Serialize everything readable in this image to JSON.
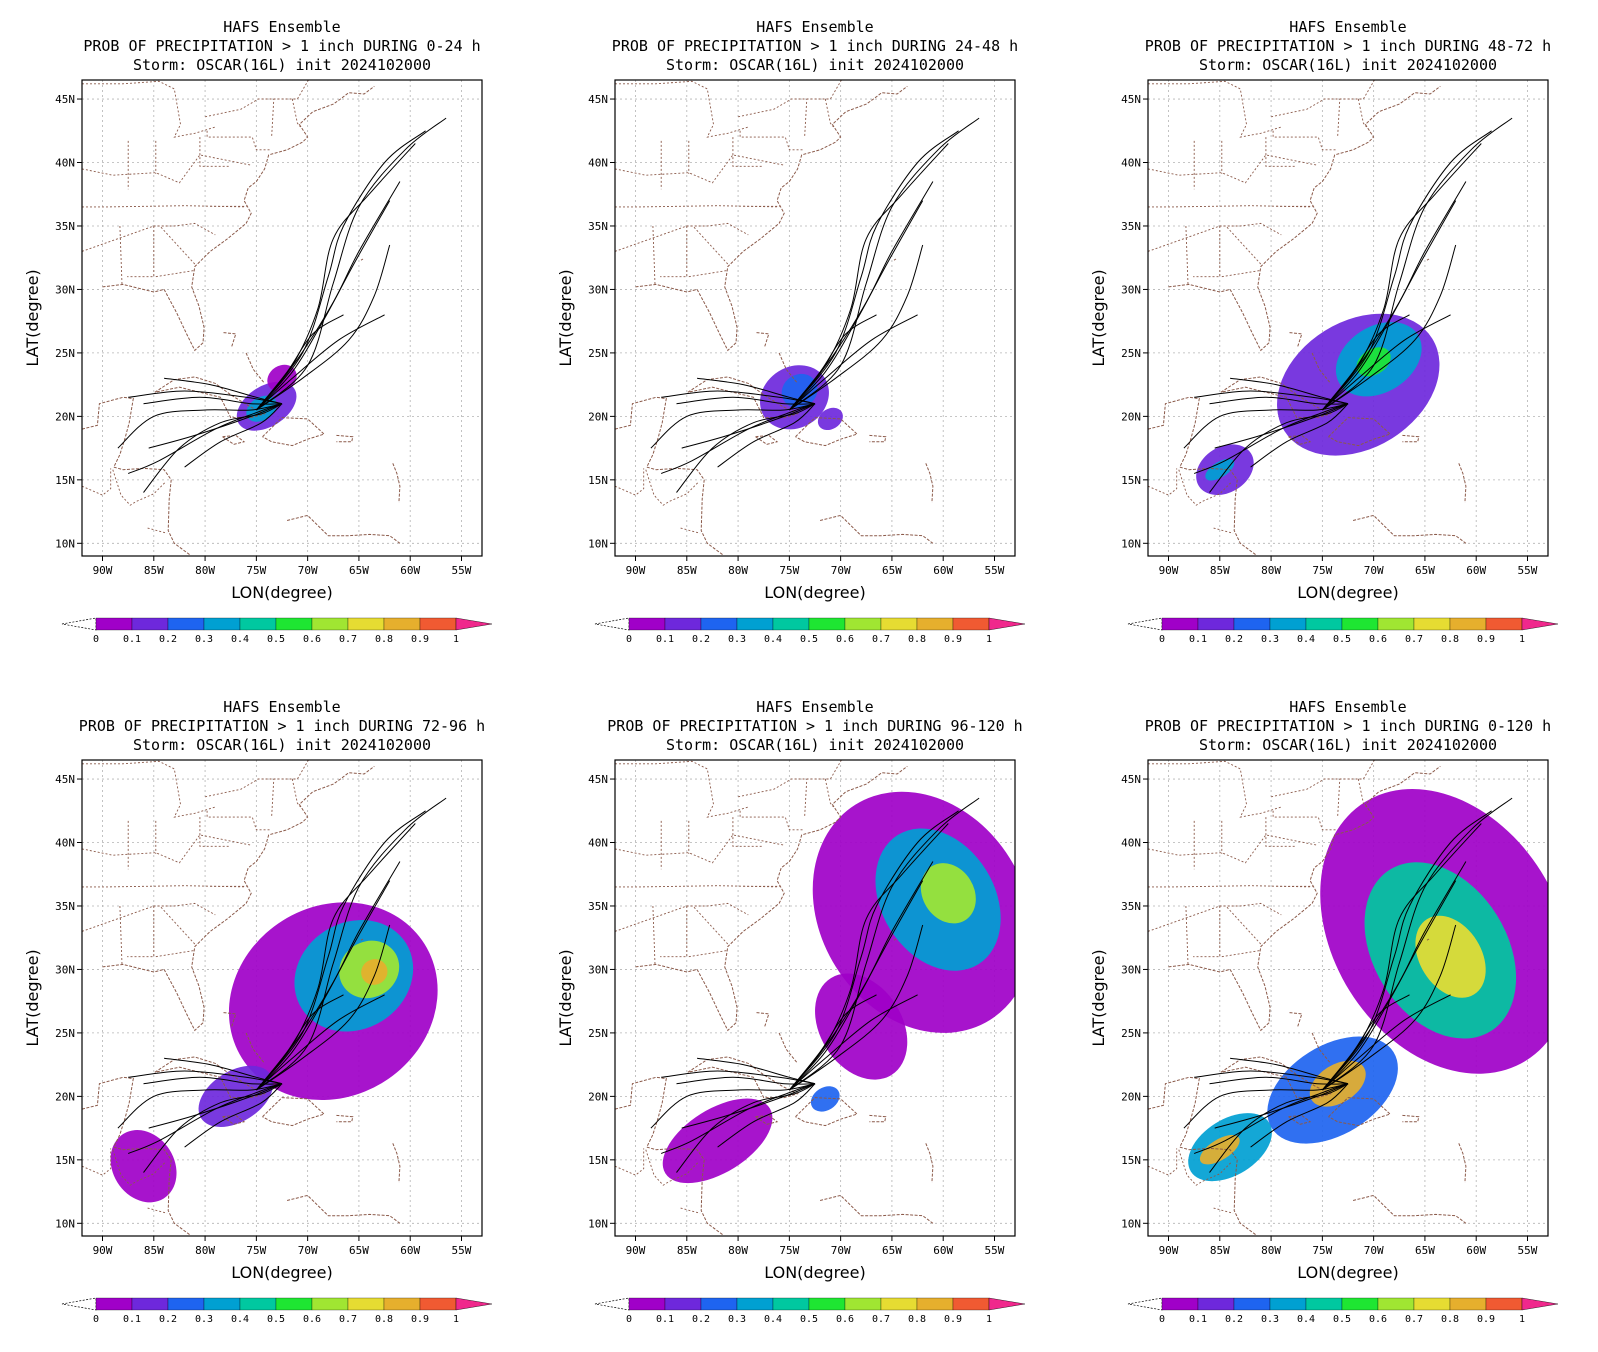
{
  "panels": [
    {
      "title_line1": "HAFS Ensemble",
      "title_line2": "PROB OF PRECIPITATION > 1 inch DURING  0-24 h",
      "title_line3": "Storm: OSCAR(16L) init 2024102000",
      "xlabel": "LON(degree)",
      "ylabel": "LAT(degree)",
      "precip_areas": [
        {
          "lon": -74.0,
          "lat": 20.8,
          "rlon": 3.2,
          "rlat": 1.6,
          "prob": 0.12
        },
        {
          "lon": -74.5,
          "lat": 20.6,
          "rlon": 1.6,
          "rlat": 0.9,
          "prob": 0.3
        },
        {
          "lon": -72.5,
          "lat": 23.0,
          "rlon": 1.5,
          "rlat": 1.0,
          "prob": 0.05
        }
      ]
    },
    {
      "title_line1": "HAFS Ensemble",
      "title_line2": "PROB OF PRECIPITATION > 1 inch DURING 24-48 h",
      "title_line3": "Storm: OSCAR(16L) init 2024102000",
      "xlabel": "LON(degree)",
      "ylabel": "LAT(degree)",
      "precip_areas": [
        {
          "lon": -74.5,
          "lat": 21.5,
          "rlon": 3.5,
          "rlat": 2.4,
          "prob": 0.1
        },
        {
          "lon": -74.0,
          "lat": 22.0,
          "rlon": 1.8,
          "rlat": 1.3,
          "prob": 0.28
        },
        {
          "lon": -71.0,
          "lat": 19.8,
          "rlon": 1.3,
          "rlat": 0.8,
          "prob": 0.15
        }
      ]
    },
    {
      "title_line1": "HAFS Ensemble",
      "title_line2": "PROB OF PRECIPITATION > 1 inch DURING 48-72 h",
      "title_line3": "Storm: OSCAR(16L) init 2024102000",
      "xlabel": "LON(degree)",
      "ylabel": "LAT(degree)",
      "precip_areas": [
        {
          "lon": -71.5,
          "lat": 22.5,
          "rlon": 8.5,
          "rlat": 5.0,
          "prob": 0.1
        },
        {
          "lon": -69.5,
          "lat": 24.5,
          "rlon": 4.5,
          "rlat": 2.6,
          "prob": 0.35
        },
        {
          "lon": -70.0,
          "lat": 24.3,
          "rlon": 1.8,
          "rlat": 1.0,
          "prob": 0.55
        },
        {
          "lon": -84.5,
          "lat": 15.8,
          "rlon": 3.0,
          "rlat": 1.8,
          "prob": 0.12
        },
        {
          "lon": -85.0,
          "lat": 15.8,
          "rlon": 1.6,
          "rlat": 0.6,
          "prob": 0.35
        }
      ]
    },
    {
      "title_line1": "HAFS Ensemble",
      "title_line2": "PROB OF PRECIPITATION > 1 inch DURING 72-96 h",
      "title_line3": "Storm: OSCAR(16L) init 2024102000",
      "xlabel": "LON(degree)",
      "ylabel": "LAT(degree)",
      "precip_areas": [
        {
          "lon": -67.5,
          "lat": 27.5,
          "rlon": 10.5,
          "rlat": 7.5,
          "prob": 0.08
        },
        {
          "lon": -65.5,
          "lat": 29.5,
          "rlon": 6.0,
          "rlat": 4.2,
          "prob": 0.35
        },
        {
          "lon": -64.0,
          "lat": 30.0,
          "rlon": 3.0,
          "rlat": 2.2,
          "prob": 0.6
        },
        {
          "lon": -63.5,
          "lat": 29.8,
          "rlon": 1.3,
          "rlat": 1.0,
          "prob": 0.8
        },
        {
          "lon": -86.0,
          "lat": 14.5,
          "rlon": 3.0,
          "rlat": 3.0,
          "prob": 0.08
        },
        {
          "lon": -77.0,
          "lat": 20.0,
          "rlon": 4.0,
          "rlat": 2.0,
          "prob": 0.1
        }
      ]
    },
    {
      "title_line1": "HAFS Ensemble",
      "title_line2": "PROB OF PRECIPITATION > 1 inch DURING 96-120 h",
      "title_line3": "Storm: OSCAR(16L) init 2024102000",
      "xlabel": "LON(degree)",
      "ylabel": "LAT(degree)",
      "precip_areas": [
        {
          "lon": -62.0,
          "lat": 34.5,
          "rlon": 10.0,
          "rlat": 10.0,
          "prob": 0.08
        },
        {
          "lon": -60.5,
          "lat": 35.5,
          "rlon": 5.5,
          "rlat": 6.0,
          "prob": 0.35
        },
        {
          "lon": -59.5,
          "lat": 36.0,
          "rlon": 2.5,
          "rlat": 2.5,
          "prob": 0.6
        },
        {
          "lon": -68.0,
          "lat": 25.5,
          "rlon": 4.0,
          "rlat": 4.5,
          "prob": 0.08
        },
        {
          "lon": -82.0,
          "lat": 16.5,
          "rlon": 6.0,
          "rlat": 2.5,
          "prob": 0.08
        },
        {
          "lon": -71.5,
          "lat": 19.8,
          "rlon": 1.5,
          "rlat": 0.9,
          "prob": 0.22
        }
      ]
    },
    {
      "title_line1": "HAFS Ensemble",
      "title_line2": "PROB OF PRECIPITATION > 1 inch DURING 0-120 h",
      "title_line3": "Storm: OSCAR(16L) init 2024102000",
      "xlabel": "LON(degree)",
      "ylabel": "LAT(degree)",
      "precip_areas": [
        {
          "lon": -63.0,
          "lat": 33.0,
          "rlon": 11.0,
          "rlat": 12.0,
          "prob": 0.08
        },
        {
          "lon": -63.5,
          "lat": 31.5,
          "rlon": 6.5,
          "rlat": 7.5,
          "prob": 0.45
        },
        {
          "lon": -62.5,
          "lat": 31.0,
          "rlon": 3.0,
          "rlat": 3.5,
          "prob": 0.75
        },
        {
          "lon": -74.0,
          "lat": 20.5,
          "rlon": 7.0,
          "rlat": 3.5,
          "prob": 0.25
        },
        {
          "lon": -73.5,
          "lat": 21.0,
          "rlon": 3.0,
          "rlat": 1.5,
          "prob": 0.85
        },
        {
          "lon": -84.0,
          "lat": 16.0,
          "rlon": 4.5,
          "rlat": 2.2,
          "prob": 0.3
        },
        {
          "lon": -85.0,
          "lat": 15.8,
          "rlon": 2.2,
          "rlat": 0.8,
          "prob": 0.8
        }
      ]
    }
  ],
  "axes": {
    "lon_ticks": [
      -90,
      -85,
      -80,
      -75,
      -70,
      -65,
      -60,
      -55
    ],
    "lon_tick_labels": [
      "90W",
      "85W",
      "80W",
      "75W",
      "70W",
      "65W",
      "60W",
      "55W"
    ],
    "lat_ticks": [
      10,
      15,
      20,
      25,
      30,
      35,
      40,
      45
    ],
    "lat_tick_labels": [
      "10N",
      "15N",
      "20N",
      "25N",
      "30N",
      "35N",
      "40N",
      "45N"
    ],
    "lon_range": [
      -92,
      -53
    ],
    "lat_range": [
      9,
      46.5
    ]
  },
  "colorbar": {
    "labels": [
      "0",
      "0.1",
      "0.2",
      "0.3",
      "0.4",
      "0.5",
      "0.6",
      "0.7",
      "0.8",
      "0.9",
      "1"
    ],
    "colors": [
      "#a000c8",
      "#6e28dc",
      "#1e64f0",
      "#00a0d2",
      "#00c8a0",
      "#1ee632",
      "#a0e632",
      "#e6dc32",
      "#e6af2d",
      "#f05a32",
      "#f0288c"
    ]
  },
  "tracks": [
    {
      "points": [
        [
          -72.5,
          21.0
        ],
        [
          -74.5,
          20.2
        ],
        [
          -78.5,
          19.5
        ],
        [
          -82.5,
          17.5
        ],
        [
          -86.0,
          14.0
        ]
      ]
    },
    {
      "points": [
        [
          -72.5,
          21.0
        ],
        [
          -75.0,
          20.3
        ],
        [
          -79.0,
          19.0
        ],
        [
          -84.5,
          16.5
        ],
        [
          -87.5,
          15.5
        ]
      ]
    },
    {
      "points": [
        [
          -72.5,
          21.0
        ],
        [
          -75.5,
          20.5
        ],
        [
          -80.0,
          20.5
        ],
        [
          -85.0,
          20.0
        ],
        [
          -88.5,
          17.5
        ]
      ]
    },
    {
      "points": [
        [
          -72.5,
          21.0
        ],
        [
          -75.5,
          21.0
        ],
        [
          -80.5,
          21.5
        ],
        [
          -86.0,
          21.0
        ]
      ]
    },
    {
      "points": [
        [
          -72.5,
          21.0
        ],
        [
          -76.0,
          21.5
        ],
        [
          -82.0,
          22.0
        ],
        [
          -87.5,
          21.5
        ]
      ]
    },
    {
      "points": [
        [
          -72.5,
          21.0
        ],
        [
          -75.5,
          20.0
        ],
        [
          -81.0,
          18.5
        ],
        [
          -85.5,
          17.5
        ]
      ]
    },
    {
      "points": [
        [
          -72.5,
          21.0
        ],
        [
          -75.0,
          21.5
        ],
        [
          -79.5,
          22.5
        ],
        [
          -84.0,
          23.0
        ]
      ]
    },
    {
      "points": [
        [
          -72.5,
          21.0
        ],
        [
          -74.5,
          19.5
        ],
        [
          -78.5,
          18.0
        ],
        [
          -82.0,
          16.0
        ]
      ]
    },
    {
      "points": [
        [
          -75.0,
          20.5
        ],
        [
          -71.5,
          23.0
        ],
        [
          -67.0,
          26.0
        ],
        [
          -62.5,
          28.0
        ]
      ]
    },
    {
      "points": [
        [
          -75.0,
          20.5
        ],
        [
          -71.0,
          24.5
        ],
        [
          -67.5,
          29.0
        ],
        [
          -65.0,
          33.0
        ],
        [
          -61.0,
          38.5
        ]
      ]
    },
    {
      "points": [
        [
          -75.0,
          20.5
        ],
        [
          -70.5,
          25.0
        ],
        [
          -68.0,
          31.0
        ],
        [
          -66.5,
          35.0
        ],
        [
          -62.5,
          40.0
        ],
        [
          -58.5,
          42.5
        ]
      ]
    },
    {
      "points": [
        [
          -75.0,
          20.5
        ],
        [
          -70.0,
          24.0
        ],
        [
          -67.5,
          30.5
        ],
        [
          -65.0,
          36.5
        ],
        [
          -60.5,
          41.0
        ],
        [
          -56.5,
          43.5
        ]
      ]
    },
    {
      "points": [
        [
          -75.0,
          20.5
        ],
        [
          -71.5,
          23.5
        ],
        [
          -68.5,
          27.5
        ],
        [
          -65.5,
          32.0
        ],
        [
          -62.0,
          37.0
        ]
      ]
    },
    {
      "points": [
        [
          -75.0,
          20.5
        ],
        [
          -70.5,
          23.0
        ],
        [
          -66.0,
          26.0
        ],
        [
          -63.5,
          29.5
        ],
        [
          -62.0,
          33.5
        ]
      ]
    },
    {
      "points": [
        [
          -75.0,
          20.5
        ],
        [
          -71.5,
          24.0
        ],
        [
          -69.0,
          28.5
        ],
        [
          -67.5,
          34.0
        ],
        [
          -64.0,
          37.5
        ],
        [
          -59.5,
          41.5
        ]
      ]
    },
    {
      "points": [
        [
          -75.0,
          20.5
        ],
        [
          -72.0,
          23.5
        ],
        [
          -69.5,
          26.5
        ],
        [
          -66.5,
          28.0
        ]
      ]
    }
  ]
}
